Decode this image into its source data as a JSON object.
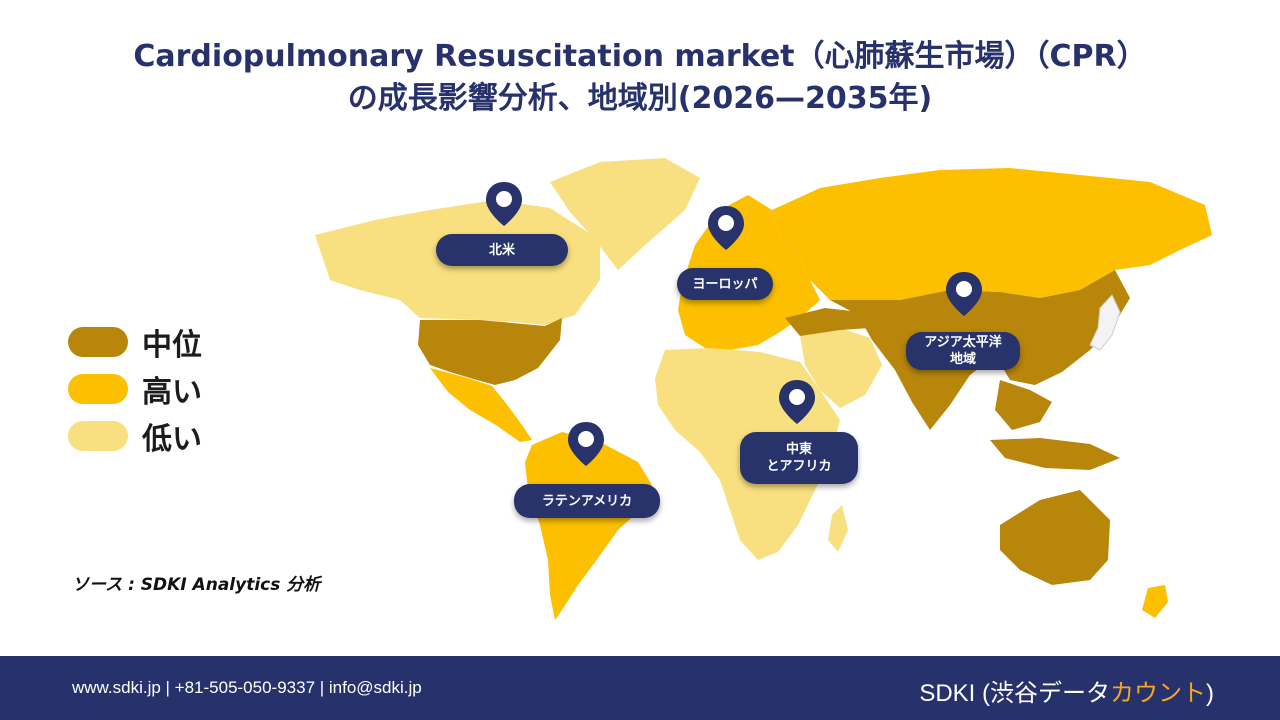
{
  "title": {
    "line1": "Cardiopulmonary Resuscitation market（心肺蘇生市場）（CPR）",
    "line2": "の成長影響分析、地域別(2026—2035年)"
  },
  "legend": [
    {
      "label": "中位",
      "color": "#b8860b"
    },
    {
      "label": "高い",
      "color": "#fcc000"
    },
    {
      "label": "低い",
      "color": "#f8df7f"
    }
  ],
  "colors": {
    "medium": "#b8860b",
    "high": "#fcc000",
    "low": "#f8df7f",
    "navy": "#27316b",
    "pin": "#28336b"
  },
  "regions": {
    "north_america": {
      "label": "北米",
      "level": "medium"
    },
    "europe": {
      "label": "ヨーロッパ",
      "level": "high"
    },
    "asia_pacific": {
      "label_line1": "アジア太平洋",
      "label_line2": "地域",
      "level": "medium"
    },
    "middle_east_africa": {
      "label_line1": "中東",
      "label_line2": "とアフリカ",
      "level": "low"
    },
    "latin_america": {
      "label": "ラテンアメリカ",
      "level": "high"
    }
  },
  "source": "ソース : SDKI Analytics 分析",
  "footer": {
    "contact": "www.sdki.jp  | +81-505-050-9337 | info@sdki.jp",
    "brand_main": "SDKI (渋谷データ",
    "brand_accent": "カウント",
    "brand_close": ")"
  }
}
